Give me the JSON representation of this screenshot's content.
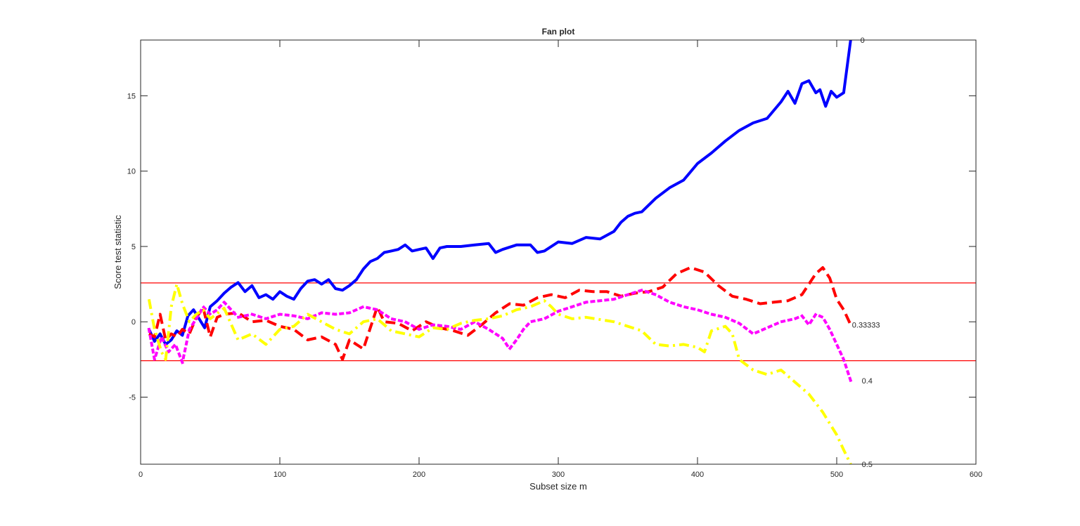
{
  "chart_data": {
    "type": "line",
    "title": "Fan plot",
    "xlabel": "Subset size m",
    "ylabel": "Score test statistic",
    "xlim": [
      0,
      600
    ],
    "ylim": [
      -9.45,
      18.7
    ],
    "xticks": [
      0,
      100,
      200,
      300,
      400,
      500,
      600
    ],
    "yticks": [
      -5,
      0,
      5,
      10,
      15
    ],
    "grid": false,
    "legend": "none (series labelled at right end)",
    "reference_lines": [
      {
        "y": 2.58,
        "color": "#ff0000",
        "style": "solid"
      },
      {
        "y": -2.58,
        "color": "#ff0000",
        "style": "solid"
      }
    ],
    "series": [
      {
        "name": "0",
        "label_pos": {
          "x": 517,
          "y": 18.7
        },
        "color": "#0000ff",
        "style": "solid",
        "x": [
          6,
          10,
          14,
          18,
          22,
          26,
          30,
          34,
          38,
          42,
          46,
          50,
          55,
          60,
          65,
          70,
          75,
          80,
          85,
          90,
          95,
          100,
          105,
          110,
          115,
          120,
          125,
          130,
          135,
          140,
          145,
          150,
          155,
          160,
          165,
          170,
          175,
          180,
          185,
          190,
          195,
          200,
          205,
          210,
          215,
          220,
          230,
          240,
          250,
          255,
          260,
          270,
          280,
          285,
          290,
          300,
          310,
          320,
          330,
          340,
          345,
          350,
          355,
          360,
          370,
          380,
          390,
          400,
          410,
          420,
          430,
          440,
          450,
          460,
          465,
          470,
          475,
          480,
          485,
          488,
          492,
          496,
          500,
          505,
          510
        ],
        "values": [
          -0.5,
          -1.3,
          -0.8,
          -1.5,
          -1.2,
          -0.6,
          -0.9,
          0.4,
          0.8,
          0.2,
          -0.4,
          1.0,
          1.4,
          1.9,
          2.3,
          2.6,
          2.0,
          2.4,
          1.6,
          1.8,
          1.5,
          2.0,
          1.7,
          1.5,
          2.2,
          2.7,
          2.8,
          2.5,
          2.8,
          2.2,
          2.1,
          2.4,
          2.8,
          3.5,
          4.0,
          4.2,
          4.6,
          4.7,
          4.8,
          5.1,
          4.7,
          4.8,
          4.9,
          4.2,
          4.9,
          5.0,
          5.0,
          5.1,
          5.2,
          4.6,
          4.8,
          5.1,
          5.1,
          4.6,
          4.7,
          5.3,
          5.2,
          5.6,
          5.5,
          6.0,
          6.6,
          7.0,
          7.2,
          7.3,
          8.2,
          8.9,
          9.4,
          10.5,
          11.2,
          12.0,
          12.7,
          13.2,
          13.5,
          14.6,
          15.3,
          14.5,
          15.8,
          16.0,
          15.2,
          15.4,
          14.3,
          15.3,
          14.9,
          15.2,
          18.7
        ]
      },
      {
        "name": "0.33333",
        "label_pos": {
          "x": 511,
          "y": -0.2
        },
        "color": "#ff0000",
        "style": "dashed",
        "x": [
          6,
          10,
          14,
          18,
          22,
          26,
          30,
          35,
          40,
          45,
          50,
          55,
          60,
          70,
          80,
          90,
          100,
          110,
          120,
          130,
          140,
          145,
          150,
          155,
          160,
          170,
          175,
          185,
          195,
          205,
          215,
          225,
          235,
          245,
          255,
          265,
          275,
          285,
          295,
          305,
          315,
          325,
          335,
          345,
          355,
          365,
          375,
          385,
          395,
          405,
          415,
          425,
          435,
          445,
          455,
          465,
          475,
          480,
          485,
          490,
          495,
          500,
          505,
          510
        ],
        "values": [
          -0.8,
          -1.0,
          0.5,
          -1.2,
          -0.8,
          -1.0,
          -0.5,
          -0.8,
          0.3,
          0.9,
          -1.0,
          0.3,
          0.5,
          0.6,
          0.0,
          0.1,
          -0.3,
          -0.5,
          -1.2,
          -1.0,
          -1.5,
          -2.5,
          -1.2,
          -1.5,
          -1.8,
          1.0,
          0.0,
          -0.1,
          -0.6,
          0.0,
          -0.4,
          -0.6,
          -0.9,
          -0.2,
          0.6,
          1.2,
          1.1,
          1.6,
          1.8,
          1.6,
          2.1,
          2.0,
          2.0,
          1.7,
          1.9,
          2.0,
          2.3,
          3.2,
          3.6,
          3.3,
          2.4,
          1.7,
          1.5,
          1.2,
          1.3,
          1.4,
          1.8,
          2.5,
          3.2,
          3.6,
          2.9,
          1.5,
          0.8,
          -0.2
        ]
      },
      {
        "name": "0.4",
        "label_pos": {
          "x": 518,
          "y": -3.9
        },
        "color": "#ff00ff",
        "style": "dotted",
        "x": [
          6,
          10,
          15,
          20,
          25,
          30,
          35,
          40,
          45,
          50,
          55,
          60,
          70,
          80,
          90,
          100,
          110,
          120,
          130,
          140,
          150,
          160,
          170,
          180,
          190,
          200,
          210,
          220,
          230,
          240,
          250,
          260,
          265,
          270,
          275,
          280,
          290,
          300,
          310,
          320,
          330,
          340,
          350,
          360,
          370,
          380,
          390,
          400,
          410,
          420,
          430,
          440,
          450,
          460,
          470,
          475,
          480,
          485,
          490,
          495,
          500,
          505,
          510
        ],
        "values": [
          -0.5,
          -2.5,
          -1.0,
          -2.0,
          -1.5,
          -2.7,
          -0.5,
          0.2,
          1.0,
          0.5,
          0.8,
          1.3,
          0.3,
          0.5,
          0.2,
          0.5,
          0.4,
          0.2,
          0.6,
          0.5,
          0.6,
          1.0,
          0.8,
          0.2,
          0.0,
          -0.5,
          -0.2,
          -0.3,
          -0.5,
          0.0,
          -0.5,
          -1.1,
          -1.8,
          -1.2,
          -0.5,
          0.0,
          0.2,
          0.7,
          1.0,
          1.3,
          1.4,
          1.5,
          1.8,
          2.1,
          1.8,
          1.3,
          1.0,
          0.8,
          0.5,
          0.3,
          -0.1,
          -0.8,
          -0.4,
          0.0,
          0.2,
          0.4,
          -0.2,
          0.5,
          0.3,
          -0.5,
          -1.5,
          -2.5,
          -3.9
        ]
      },
      {
        "name": "0.5",
        "label_pos": {
          "x": 518,
          "y": -9.45
        },
        "color": "#ffff00",
        "style": "dashdot",
        "x": [
          6,
          10,
          15,
          18,
          22,
          26,
          30,
          35,
          40,
          45,
          50,
          60,
          70,
          80,
          90,
          100,
          110,
          120,
          130,
          140,
          150,
          160,
          170,
          180,
          190,
          200,
          210,
          220,
          230,
          240,
          250,
          260,
          270,
          280,
          290,
          295,
          300,
          310,
          320,
          340,
          360,
          370,
          380,
          390,
          400,
          405,
          410,
          420,
          425,
          430,
          440,
          450,
          460,
          470,
          480,
          490,
          500,
          505,
          510
        ],
        "values": [
          1.5,
          -0.5,
          -2.0,
          -2.5,
          1.0,
          2.5,
          1.2,
          0.0,
          0.5,
          0.8,
          0.2,
          0.9,
          -1.2,
          -0.8,
          -1.5,
          -0.5,
          -0.3,
          0.5,
          0.0,
          -0.5,
          -0.8,
          0.0,
          0.2,
          -0.6,
          -0.8,
          -1.0,
          -0.4,
          -0.5,
          -0.1,
          0.1,
          0.2,
          0.4,
          0.8,
          1.0,
          1.4,
          1.0,
          0.5,
          0.2,
          0.3,
          0.0,
          -0.6,
          -1.5,
          -1.6,
          -1.5,
          -1.7,
          -2.0,
          -0.6,
          -0.3,
          -0.8,
          -2.5,
          -3.2,
          -3.5,
          -3.2,
          -4.0,
          -4.8,
          -6.0,
          -7.5,
          -8.5,
          -9.45
        ]
      }
    ]
  },
  "figure": {
    "title": "Fan plot",
    "xlabel": "Subset size m",
    "ylabel": "Score test statistic",
    "xtick_labels": [
      "0",
      "100",
      "200",
      "300",
      "400",
      "500",
      "600"
    ],
    "ytick_labels": [
      "-5",
      "0",
      "5",
      "10",
      "15"
    ],
    "series_labels": [
      "0",
      "0.33333",
      "0.4",
      "0.5"
    ]
  }
}
